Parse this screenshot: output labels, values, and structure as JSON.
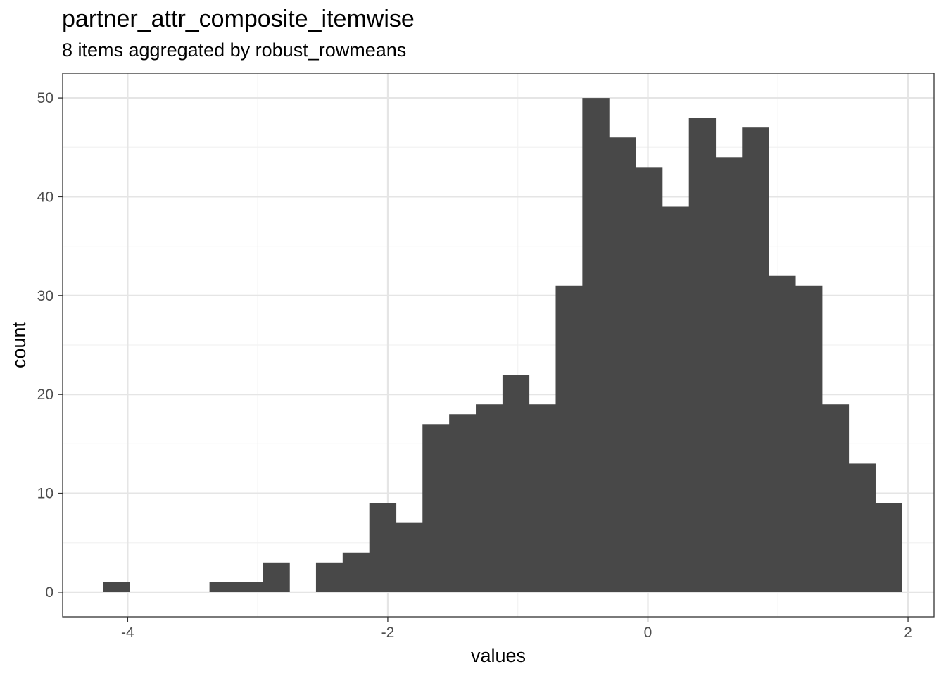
{
  "chart_data": {
    "type": "bar",
    "title": "partner_attr_composite_itemwise",
    "subtitle": "8 items aggregated by robust_rowmeans",
    "xlabel": "values",
    "ylabel": "count",
    "xlim": [
      -4.5,
      2.2
    ],
    "ylim": [
      -2.5,
      52.5
    ],
    "x_ticks": [
      -4,
      -2,
      0,
      2
    ],
    "x_tick_labels": [
      "-4",
      "-2",
      "0",
      "2"
    ],
    "y_ticks": [
      0,
      10,
      20,
      30,
      40,
      50
    ],
    "y_tick_labels": [
      "0",
      "10",
      "20",
      "30",
      "40",
      "50"
    ],
    "grid": true,
    "bin_width": 0.2047,
    "bins": [
      {
        "x0": -4.19,
        "x1": -3.985,
        "count": 1
      },
      {
        "x0": -3.985,
        "x1": -3.78,
        "count": 0
      },
      {
        "x0": -3.78,
        "x1": -3.575,
        "count": 0
      },
      {
        "x0": -3.575,
        "x1": -3.371,
        "count": 0
      },
      {
        "x0": -3.371,
        "x1": -3.166,
        "count": 1
      },
      {
        "x0": -3.166,
        "x1": -2.961,
        "count": 1
      },
      {
        "x0": -2.961,
        "x1": -2.756,
        "count": 3
      },
      {
        "x0": -2.756,
        "x1": -2.552,
        "count": 0
      },
      {
        "x0": -2.552,
        "x1": -2.347,
        "count": 3
      },
      {
        "x0": -2.347,
        "x1": -2.142,
        "count": 4
      },
      {
        "x0": -2.142,
        "x1": -1.937,
        "count": 9
      },
      {
        "x0": -1.937,
        "x1": -1.733,
        "count": 7
      },
      {
        "x0": -1.733,
        "x1": -1.528,
        "count": 17
      },
      {
        "x0": -1.528,
        "x1": -1.323,
        "count": 18
      },
      {
        "x0": -1.323,
        "x1": -1.118,
        "count": 19
      },
      {
        "x0": -1.118,
        "x1": -0.914,
        "count": 22
      },
      {
        "x0": -0.914,
        "x1": -0.709,
        "count": 19
      },
      {
        "x0": -0.709,
        "x1": -0.504,
        "count": 31
      },
      {
        "x0": -0.504,
        "x1": -0.299,
        "count": 50
      },
      {
        "x0": -0.299,
        "x1": -0.095,
        "count": 46
      },
      {
        "x0": -0.095,
        "x1": 0.11,
        "count": 43
      },
      {
        "x0": 0.11,
        "x1": 0.315,
        "count": 39
      },
      {
        "x0": 0.315,
        "x1": 0.52,
        "count": 48
      },
      {
        "x0": 0.52,
        "x1": 0.724,
        "count": 44
      },
      {
        "x0": 0.724,
        "x1": 0.929,
        "count": 47
      },
      {
        "x0": 0.929,
        "x1": 1.134,
        "count": 32
      },
      {
        "x0": 1.134,
        "x1": 1.339,
        "count": 31
      },
      {
        "x0": 1.339,
        "x1": 1.543,
        "count": 19
      },
      {
        "x0": 1.543,
        "x1": 1.748,
        "count": 13
      },
      {
        "x0": 1.748,
        "x1": 1.953,
        "count": 9
      }
    ],
    "bar_color": "#484848",
    "grid_major_color": "#e5e5e5",
    "grid_minor_color": "#f2f2f2",
    "panel_border_color": "#333333"
  }
}
